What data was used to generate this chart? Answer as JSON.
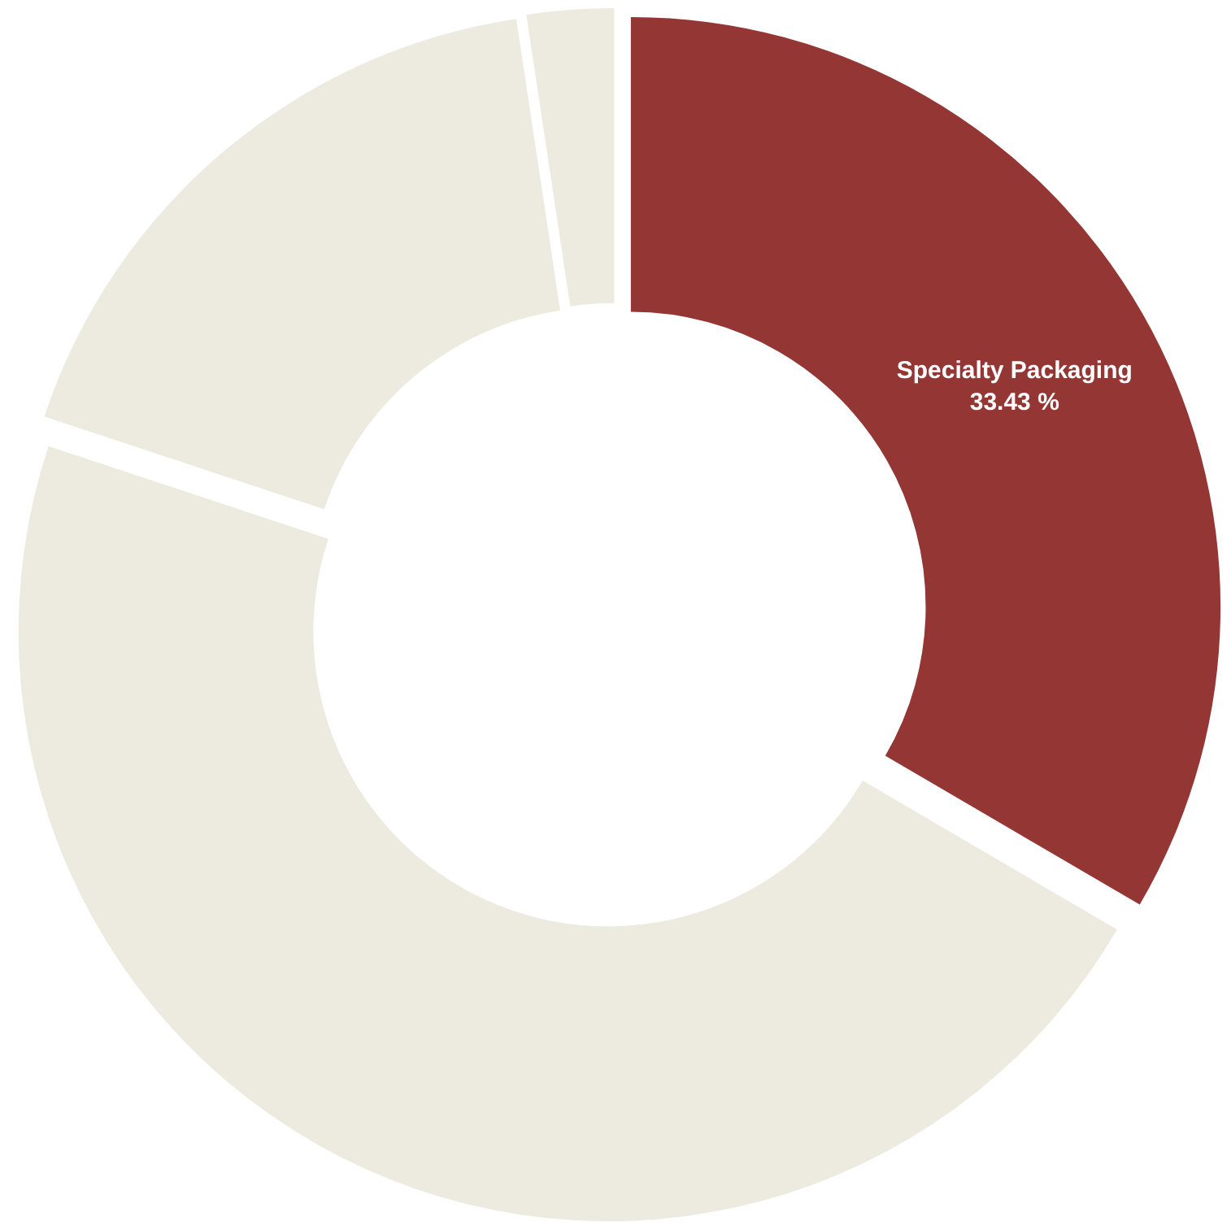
{
  "chart_data": {
    "type": "donut",
    "categories": [
      "Specialty Packaging",
      null,
      null,
      null
    ],
    "values": [
      33.43,
      46.66,
      17.53,
      2.38
    ],
    "colors": [
      "#943634",
      "#edeae0",
      "#edeae0",
      "#edeae0"
    ],
    "value_labels": [
      "33.43 %",
      null,
      null,
      null
    ],
    "legend": false
  }
}
